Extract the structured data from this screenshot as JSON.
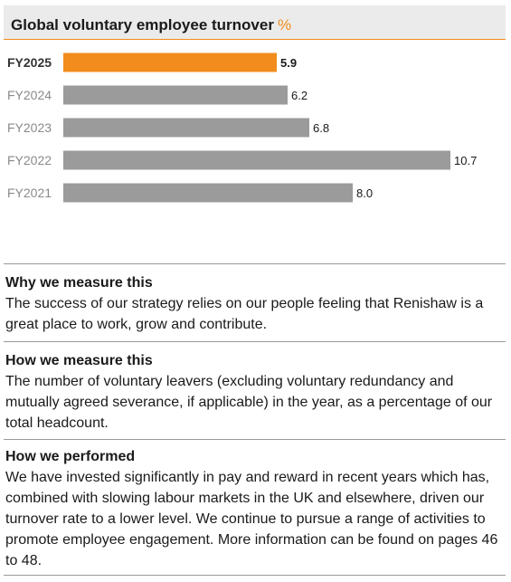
{
  "header": {
    "title": "Global voluntary employee turnover",
    "unit": "%"
  },
  "chart_data": {
    "type": "bar",
    "orientation": "horizontal",
    "title": "Global voluntary employee turnover",
    "unit": "%",
    "categories": [
      "FY2025",
      "FY2024",
      "FY2023",
      "FY2022",
      "FY2021"
    ],
    "values": [
      5.9,
      6.2,
      6.8,
      10.7,
      8.0
    ],
    "value_labels": [
      "5.9",
      "6.2",
      "6.8",
      "10.7",
      "8.0"
    ],
    "highlight_index": 0,
    "xlim": [
      0,
      10.7
    ],
    "grid": false,
    "colors": {
      "highlight": "#f28c1c",
      "default": "#9b9b9b"
    }
  },
  "sections": [
    {
      "title": "Why we measure this",
      "body": "The success of our strategy relies on our people feeling that Renishaw is a great place to work, grow and contribute."
    },
    {
      "title": "How we measure this",
      "body": "The number of voluntary leavers (excluding voluntary redundancy and mutually agreed severance, if applicable) in the year, as a percentage of our total headcount."
    },
    {
      "title": "How we performed",
      "body": "We have invested significantly in pay and reward in recent years which has, combined with slowing labour markets in the UK and elsewhere, driven our turnover rate to a lower level. We continue to pursue a range of activities to promote employee engagement. More information can be found on pages 46 to 48."
    }
  ]
}
